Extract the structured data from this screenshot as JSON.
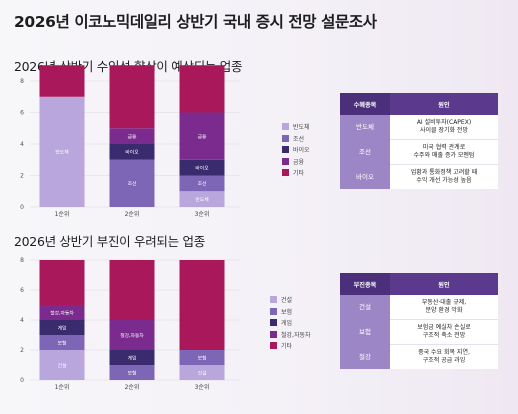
{
  "title": "2026년 이코노믹데일리 상반기 국내 증시 전망 설문조사",
  "colors": {
    "반도체": "#b8a6dc",
    "조선": "#7e66b6",
    "바이오": "#3a2a6e",
    "금융": "#7b2b8e",
    "기타": "#a8185a",
    "건설": "#b8a6dc",
    "보험": "#7e66b6",
    "게임": "#3a2a6e",
    "철강,자동차": "#7b2b8e",
    "table_header": "#5b3a8e",
    "table_key": "#9d86c6"
  },
  "chart_data": [
    {
      "type": "bar",
      "stacked": true,
      "title": "2026년 상반기 수익성 향상이 예상되는 업종",
      "categories": [
        "1순위",
        "2순위",
        "3순위"
      ],
      "ylim": [
        0,
        8
      ],
      "yticks": [
        "0",
        "2",
        "4",
        "6",
        "8"
      ],
      "grid": true,
      "legend_position": "right",
      "series": [
        {
          "name": "반도체",
          "values": [
            7,
            0,
            1
          ]
        },
        {
          "name": "조선",
          "values": [
            0,
            3,
            1
          ]
        },
        {
          "name": "바이오",
          "values": [
            0,
            1,
            1
          ]
        },
        {
          "name": "금융",
          "values": [
            0,
            1,
            3
          ]
        },
        {
          "name": "기타",
          "values": [
            2,
            4,
            3
          ]
        }
      ],
      "legend": [
        "반도체",
        "조선",
        "바이오",
        "금융",
        "기타"
      ]
    },
    {
      "type": "bar",
      "stacked": true,
      "title": "2026년 상반기 부진이 우려되는 업종",
      "categories": [
        "1순위",
        "2순위",
        "3순위"
      ],
      "ylim": [
        0,
        8
      ],
      "yticks": [
        "0",
        "2",
        "4",
        "6",
        "8"
      ],
      "grid": true,
      "legend_position": "right",
      "series": [
        {
          "name": "건설",
          "values": [
            2,
            0,
            1
          ]
        },
        {
          "name": "보험",
          "values": [
            1,
            1,
            1
          ]
        },
        {
          "name": "게임",
          "values": [
            1,
            1,
            0
          ]
        },
        {
          "name": "철강,자동차",
          "values": [
            1,
            2,
            0
          ]
        },
        {
          "name": "기타",
          "values": [
            3,
            4,
            6
          ]
        }
      ],
      "legend": [
        "건설",
        "보험",
        "게임",
        "철강,자동차",
        "기타"
      ]
    }
  ],
  "table1": {
    "headers": [
      "수혜종목",
      "원인"
    ],
    "rows": [
      {
        "key": "반도체",
        "lines": [
          "AI 설비투자(CAPEX)",
          "사이클 장기화 전망"
        ]
      },
      {
        "key": "조선",
        "lines": [
          "미국 협력 관계로",
          "수주와 매출 증가 모멘텀"
        ]
      },
      {
        "key": "바이오",
        "lines": [
          "업황과 통화정책 고려할 때",
          "수익 개선 가능성 높음"
        ]
      }
    ]
  },
  "table2": {
    "headers": [
      "부진종목",
      "원인"
    ],
    "rows": [
      {
        "key": "건설",
        "lines": [
          "부동산·대출 규제,",
          "분양 환경 악화"
        ]
      },
      {
        "key": "보험",
        "lines": [
          "보험금 예실차 손실로",
          "구조적 축소 전망"
        ]
      },
      {
        "key": "철강",
        "lines": [
          "중국 수요 회복 지연,",
          "구조적 공급 과잉"
        ]
      }
    ]
  }
}
